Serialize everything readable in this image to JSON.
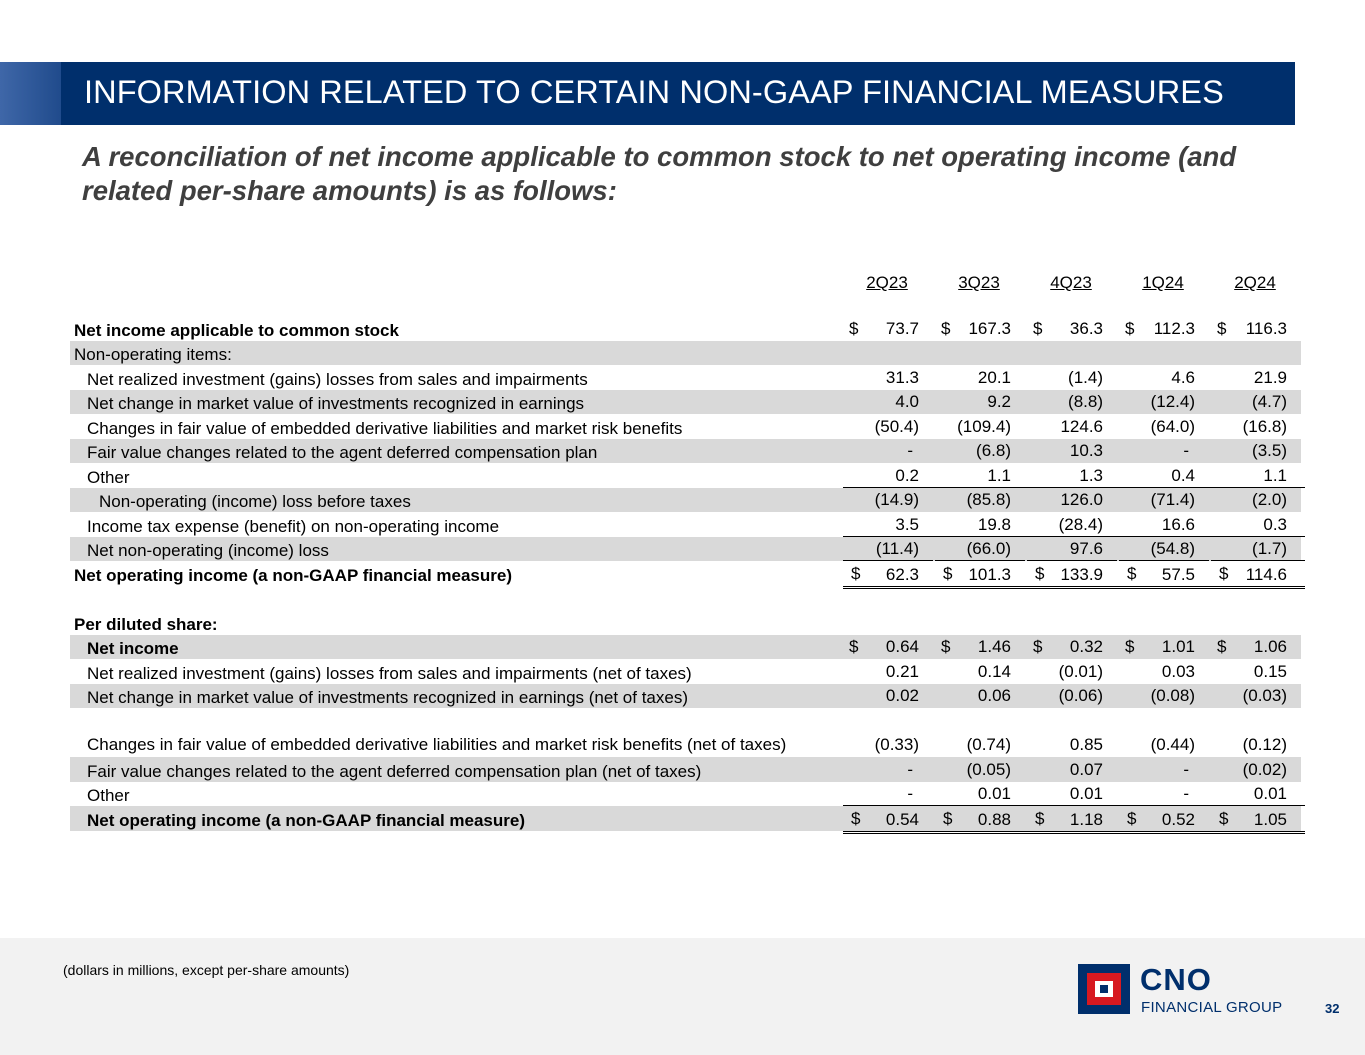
{
  "header": {
    "title": "INFORMATION RELATED TO CERTAIN NON-GAAP FINANCIAL MEASURES",
    "subtitle": "A reconciliation of net income applicable to common stock to net operating income (and related per-share amounts) is as follows:"
  },
  "table": {
    "columns": [
      "2Q23",
      "3Q23",
      "4Q23",
      "1Q24",
      "2Q24"
    ],
    "rows": [
      {
        "label": "Net income applicable to common stock",
        "indent": 0,
        "bold": true,
        "shade": false,
        "values": [
          "73.7",
          "167.3",
          "36.3",
          "112.3",
          "116.3"
        ],
        "dollar": true,
        "rule": "none"
      },
      {
        "label": "Non-operating items:",
        "indent": 0,
        "bold": false,
        "shade": true,
        "values": [
          "",
          "",
          "",
          "",
          ""
        ],
        "dollar": false,
        "rule": "none"
      },
      {
        "label": "Net realized investment (gains) losses from sales and impairments",
        "indent": 1,
        "bold": false,
        "shade": false,
        "values": [
          "31.3",
          "20.1",
          "(1.4)",
          "4.6",
          "21.9"
        ],
        "dollar": false,
        "rule": "none"
      },
      {
        "label": "Net change in market value of investments recognized in earnings",
        "indent": 1,
        "bold": false,
        "shade": true,
        "values": [
          "4.0",
          "9.2",
          "(8.8)",
          "(12.4)",
          "(4.7)"
        ],
        "dollar": false,
        "rule": "none"
      },
      {
        "label": "Changes in fair value of embedded derivative liabilities and market risk benefits",
        "indent": 1,
        "bold": false,
        "shade": false,
        "values": [
          "(50.4)",
          "(109.4)",
          "124.6",
          "(64.0)",
          "(16.8)"
        ],
        "dollar": false,
        "rule": "none"
      },
      {
        "label": "Fair value changes related to the agent deferred compensation plan",
        "indent": 1,
        "bold": false,
        "shade": true,
        "values": [
          "-",
          "(6.8)",
          "10.3",
          "-",
          "(3.5)"
        ],
        "dollar": false,
        "rule": "none"
      },
      {
        "label": "Other",
        "indent": 1,
        "bold": false,
        "shade": false,
        "values": [
          "0.2",
          "1.1",
          "1.3",
          "0.4",
          "1.1"
        ],
        "dollar": false,
        "rule": "single"
      },
      {
        "label": "Non-operating (income) loss before taxes",
        "indent": 2,
        "bold": false,
        "shade": true,
        "values": [
          "(14.9)",
          "(85.8)",
          "126.0",
          "(71.4)",
          "(2.0)"
        ],
        "dollar": false,
        "rule": "none"
      },
      {
        "label": "Income tax expense (benefit) on non-operating income",
        "indent": 1,
        "bold": false,
        "shade": false,
        "values": [
          "3.5",
          "19.8",
          "(28.4)",
          "16.6",
          "0.3"
        ],
        "dollar": false,
        "rule": "single"
      },
      {
        "label": "Net non-operating (income) loss",
        "indent": 1,
        "bold": false,
        "shade": true,
        "values": [
          "(11.4)",
          "(66.0)",
          "97.6",
          "(54.8)",
          "(1.7)"
        ],
        "dollar": false,
        "rule": "single"
      },
      {
        "label": "Net operating income (a non-GAAP financial measure)",
        "indent": 0,
        "bold": true,
        "shade": false,
        "values": [
          "62.3",
          "101.3",
          "133.9",
          "57.5",
          "114.6"
        ],
        "dollar": true,
        "rule": "double"
      },
      {
        "label": "",
        "indent": 0,
        "bold": false,
        "shade": false,
        "values": [
          "",
          "",
          "",
          "",
          ""
        ],
        "dollar": false,
        "rule": "none",
        "spacer": true
      },
      {
        "label": "Per diluted share:",
        "indent": 0,
        "bold": true,
        "shade": false,
        "values": [
          "",
          "",
          "",
          "",
          ""
        ],
        "dollar": false,
        "rule": "none"
      },
      {
        "label": "Net income",
        "indent": 1,
        "bold": true,
        "shade": true,
        "values": [
          "0.64",
          "1.46",
          "0.32",
          "1.01",
          "1.06"
        ],
        "dollar": true,
        "rule": "none"
      },
      {
        "label": "Net realized investment (gains) losses from sales and impairments (net of taxes)",
        "indent": 1,
        "bold": false,
        "shade": false,
        "values": [
          "0.21",
          "0.14",
          "(0.01)",
          "0.03",
          "0.15"
        ],
        "dollar": false,
        "rule": "none"
      },
      {
        "label": "Net change in market value of investments recognized in earnings (net of taxes)",
        "indent": 1,
        "bold": false,
        "shade": true,
        "values": [
          "0.02",
          "0.06",
          "(0.06)",
          "(0.08)",
          "(0.03)"
        ],
        "dollar": false,
        "rule": "none"
      },
      {
        "label": "Changes in fair value of embedded derivative liabilities and market risk benefits (net of taxes)",
        "indent": 1,
        "bold": false,
        "shade": false,
        "values": [
          "(0.33)",
          "(0.74)",
          "0.85",
          "(0.44)",
          "(0.12)"
        ],
        "dollar": false,
        "rule": "none",
        "wrap": true
      },
      {
        "label": "Fair value changes related to the agent deferred compensation plan (net of taxes)",
        "indent": 1,
        "bold": false,
        "shade": true,
        "values": [
          "-",
          "(0.05)",
          "0.07",
          "-",
          "(0.02)"
        ],
        "dollar": false,
        "rule": "none"
      },
      {
        "label": "Other",
        "indent": 1,
        "bold": false,
        "shade": false,
        "values": [
          "-",
          "0.01",
          "0.01",
          "-",
          "0.01"
        ],
        "dollar": false,
        "rule": "single"
      },
      {
        "label": "Net operating income (a non-GAAP financial measure)",
        "indent": 1,
        "bold": true,
        "shade": true,
        "values": [
          "0.54",
          "0.88",
          "1.18",
          "0.52",
          "1.05"
        ],
        "dollar": true,
        "rule": "double"
      }
    ],
    "currency_symbol": "$"
  },
  "footer": {
    "note": "(dollars in millions, except per-share amounts)",
    "logo_name": "CNO",
    "logo_sub": "FINANCIAL GROUP",
    "page_number": "32"
  },
  "colors": {
    "brand_navy": "#002f6c",
    "brand_red": "#d71920",
    "row_shade": "#d9d9d9"
  }
}
